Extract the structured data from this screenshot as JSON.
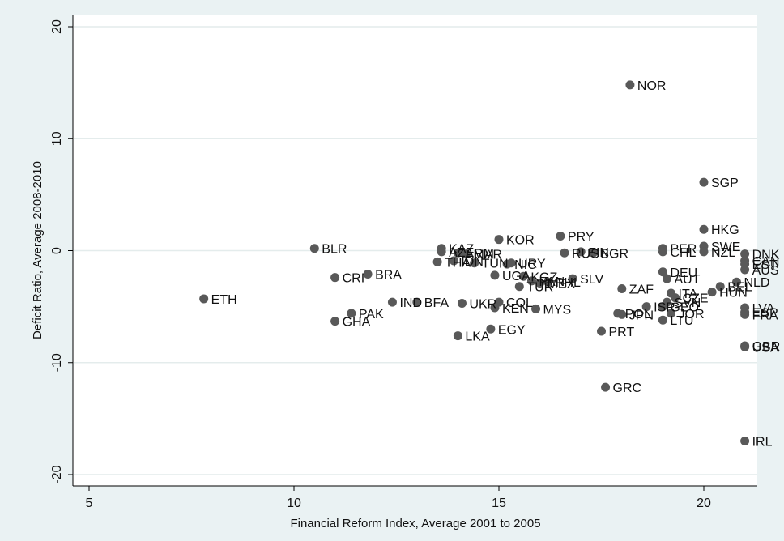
{
  "colors": {
    "background": "#eaf2f3",
    "plot_background": "#ffffff",
    "marker": "#595959",
    "grid": "#e4ecec",
    "axis": "#000000"
  },
  "chart_data": {
    "type": "scatter",
    "title": "",
    "xlabel": "Financial Reform Index, Average 2001 to 2005",
    "ylabel": "Deficit Ratio, Average 2008-2010",
    "xlim": [
      5,
      21.3
    ],
    "ylim": [
      -21,
      21
    ],
    "x_ticks": [
      5,
      10,
      15,
      20
    ],
    "y_ticks": [
      -20,
      -10,
      0,
      10,
      20
    ],
    "x_tick_labels": [
      "5",
      "10",
      "15",
      "20"
    ],
    "y_tick_labels": [
      "-20",
      "-10",
      "0",
      "10",
      "20"
    ],
    "grid": true,
    "legend": "none",
    "points": [
      {
        "label": "NOR",
        "x": 18.2,
        "y": 14.8
      },
      {
        "label": "SGP",
        "x": 20.0,
        "y": 6.1
      },
      {
        "label": "HKG",
        "x": 20.0,
        "y": 1.9
      },
      {
        "label": "PRY",
        "x": 16.5,
        "y": 1.3
      },
      {
        "label": "KOR",
        "x": 15.0,
        "y": 1.0
      },
      {
        "label": "SWE",
        "x": 20.0,
        "y": 0.4
      },
      {
        "label": "BLR",
        "x": 10.5,
        "y": 0.2
      },
      {
        "label": "KAZ",
        "x": 13.6,
        "y": 0.2
      },
      {
        "label": "PER",
        "x": 19.0,
        "y": 0.2
      },
      {
        "label": "AZE",
        "x": 13.6,
        "y": -0.1
      },
      {
        "label": "ARM",
        "x": 14.0,
        "y": -0.2
      },
      {
        "label": "MAR",
        "x": 14.2,
        "y": -0.3
      },
      {
        "label": "NZL",
        "x": 20.0,
        "y": -0.1
      },
      {
        "label": "CHL",
        "x": 19.0,
        "y": -0.1
      },
      {
        "label": "FIN",
        "x": 17.0,
        "y": -0.1
      },
      {
        "label": "RUS",
        "x": 16.6,
        "y": -0.2
      },
      {
        "label": "BGR",
        "x": 17.3,
        "y": -0.2
      },
      {
        "label": "DNK",
        "x": 21.0,
        "y": -0.3
      },
      {
        "label": "CAN",
        "x": 21.0,
        "y": -0.9
      },
      {
        "label": "EST",
        "x": 21.0,
        "y": -1.2
      },
      {
        "label": "AUS",
        "x": 21.0,
        "y": -1.7
      },
      {
        "label": "TUN",
        "x": 14.4,
        "y": -1.1
      },
      {
        "label": "IDN",
        "x": 13.9,
        "y": -0.9
      },
      {
        "label": "THA",
        "x": 13.5,
        "y": -1.0
      },
      {
        "label": "URY",
        "x": 15.3,
        "y": -1.1
      },
      {
        "label": "NIC",
        "x": 15.2,
        "y": -1.2
      },
      {
        "label": "UGA",
        "x": 14.9,
        "y": -2.2
      },
      {
        "label": "DEU",
        "x": 19.0,
        "y": -1.9
      },
      {
        "label": "KGZ",
        "x": 15.6,
        "y": -2.3
      },
      {
        "label": "AUT",
        "x": 19.1,
        "y": -2.5
      },
      {
        "label": "SLV",
        "x": 16.8,
        "y": -2.5
      },
      {
        "label": "PHL",
        "x": 16.2,
        "y": -2.8
      },
      {
        "label": "PAN",
        "x": 15.8,
        "y": -2.7
      },
      {
        "label": "MEX",
        "x": 16.0,
        "y": -2.9
      },
      {
        "label": "TUR",
        "x": 15.5,
        "y": -3.2
      },
      {
        "label": "CRI",
        "x": 11.0,
        "y": -2.4
      },
      {
        "label": "BRA",
        "x": 11.8,
        "y": -2.1
      },
      {
        "label": "NLD",
        "x": 20.8,
        "y": -2.8
      },
      {
        "label": "BEL",
        "x": 20.4,
        "y": -3.2
      },
      {
        "label": "HUN",
        "x": 20.2,
        "y": -3.7
      },
      {
        "label": "ZAF",
        "x": 18.0,
        "y": -3.4
      },
      {
        "label": "ITA",
        "x": 19.2,
        "y": -3.8
      },
      {
        "label": "CZE",
        "x": 19.3,
        "y": -4.2
      },
      {
        "label": "SVN",
        "x": 19.1,
        "y": -4.6
      },
      {
        "label": "ETH",
        "x": 7.8,
        "y": -4.3
      },
      {
        "label": "IND",
        "x": 12.4,
        "y": -4.6
      },
      {
        "label": "BFA",
        "x": 13.0,
        "y": -4.6
      },
      {
        "label": "UKR",
        "x": 14.1,
        "y": -4.7
      },
      {
        "label": "COL",
        "x": 15.0,
        "y": -4.6
      },
      {
        "label": "KEN",
        "x": 14.9,
        "y": -5.1
      },
      {
        "label": "MYS",
        "x": 15.9,
        "y": -5.2
      },
      {
        "label": "ISR",
        "x": 18.6,
        "y": -5.0
      },
      {
        "label": "GEO",
        "x": 19.0,
        "y": -5.0
      },
      {
        "label": "LVA",
        "x": 21.0,
        "y": -5.1
      },
      {
        "label": "ESP",
        "x": 21.0,
        "y": -5.5
      },
      {
        "label": "FRA",
        "x": 21.0,
        "y": -5.7
      },
      {
        "label": "PAK",
        "x": 11.4,
        "y": -5.6
      },
      {
        "label": "POL",
        "x": 17.9,
        "y": -5.6
      },
      {
        "label": "JPN",
        "x": 18.0,
        "y": -5.7
      },
      {
        "label": "JOR",
        "x": 19.2,
        "y": -5.6
      },
      {
        "label": "LTU",
        "x": 19.0,
        "y": -6.2
      },
      {
        "label": "GHA",
        "x": 11.0,
        "y": -6.3
      },
      {
        "label": "EGY",
        "x": 14.8,
        "y": -7.0
      },
      {
        "label": "PRT",
        "x": 17.5,
        "y": -7.2
      },
      {
        "label": "LKA",
        "x": 14.0,
        "y": -7.6
      },
      {
        "label": "GBR",
        "x": 21.0,
        "y": -8.5
      },
      {
        "label": "USA",
        "x": 21.0,
        "y": -8.6
      },
      {
        "label": "GRC",
        "x": 17.6,
        "y": -12.2
      },
      {
        "label": "IRL",
        "x": 21.0,
        "y": -17.0
      }
    ]
  }
}
